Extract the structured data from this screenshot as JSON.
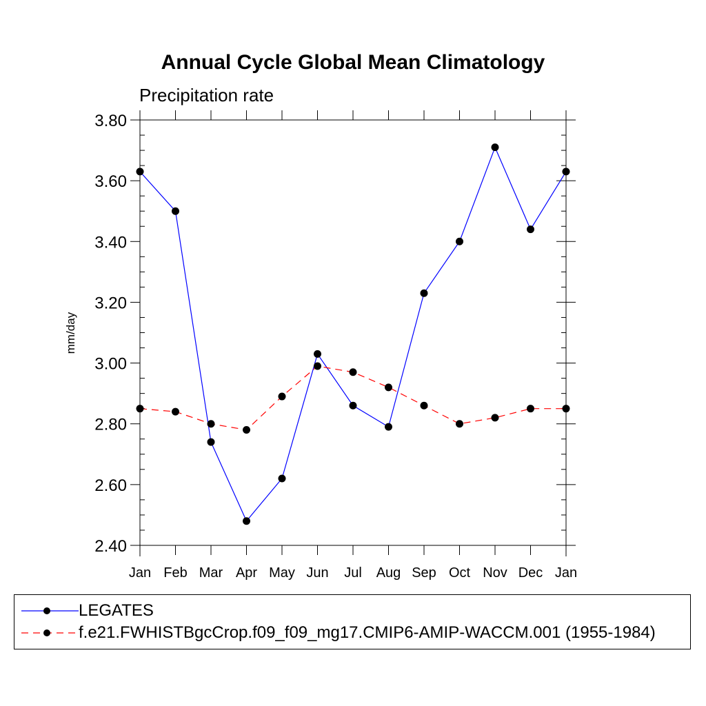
{
  "chart_data": {
    "type": "line",
    "title": "Annual Cycle Global Mean Climatology",
    "subtitle": "Precipitation rate",
    "ylabel": "mm/day",
    "xlabel": "",
    "categories": [
      "Jan",
      "Feb",
      "Mar",
      "Apr",
      "May",
      "Jun",
      "Jul",
      "Aug",
      "Sep",
      "Oct",
      "Nov",
      "Dec",
      "Jan"
    ],
    "ylim": [
      2.4,
      3.8
    ],
    "yticks": [
      "2.40",
      "2.60",
      "2.80",
      "3.00",
      "3.20",
      "3.40",
      "3.60",
      "3.80"
    ],
    "grid": false,
    "legend_position": "bottom",
    "series": [
      {
        "name": "LEGATES",
        "color": "#0000ff",
        "line_style": "solid",
        "marker": "filled-circle",
        "values": [
          3.63,
          3.5,
          2.74,
          2.48,
          2.62,
          3.03,
          2.86,
          2.79,
          3.23,
          3.4,
          3.71,
          3.44,
          3.63
        ]
      },
      {
        "name": "f.e21.FWHISTBgcCrop.f09_f09_mg17.CMIP6-AMIP-WACCM.001 (1955-1984)",
        "color": "#ff0000",
        "line_style": "dashed",
        "marker": "filled-circle",
        "values": [
          2.85,
          2.84,
          2.8,
          2.78,
          2.89,
          2.99,
          2.97,
          2.92,
          2.86,
          2.8,
          2.82,
          2.85,
          2.85
        ]
      }
    ]
  }
}
